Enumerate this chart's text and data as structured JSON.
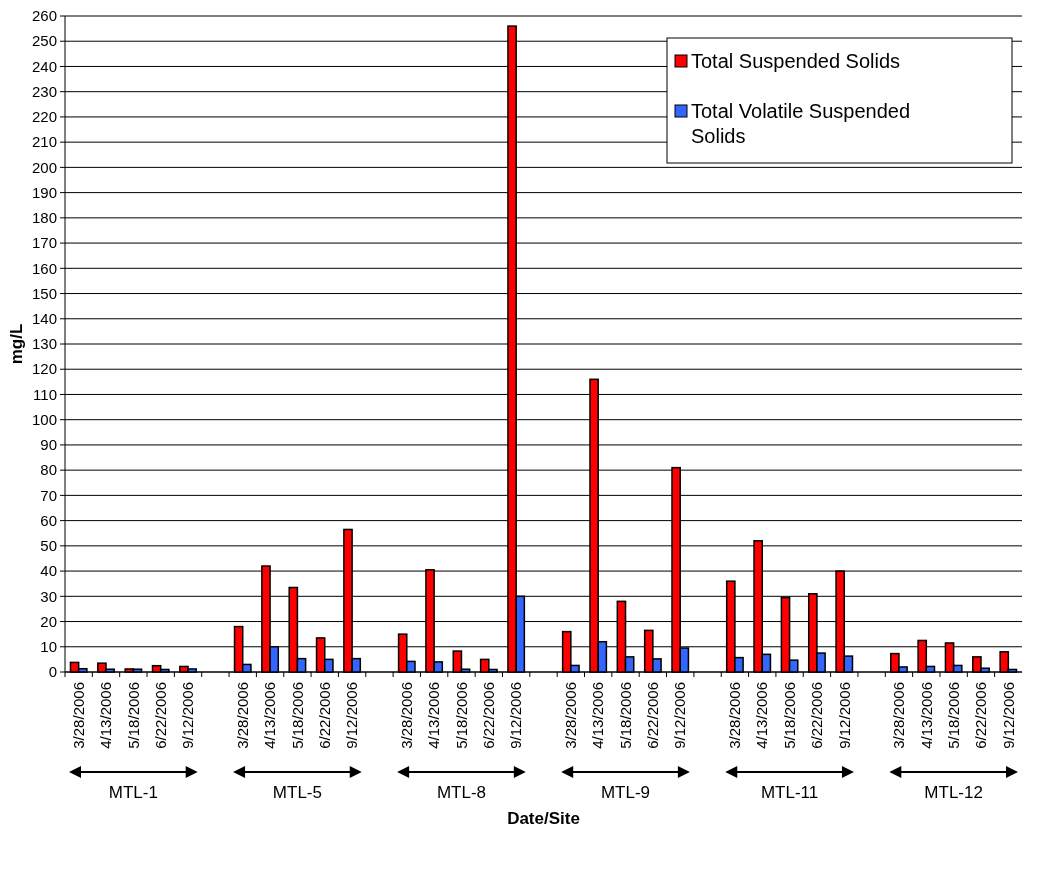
{
  "chart_data": {
    "type": "bar",
    "xlabel": "Date/Site",
    "ylabel": "mg/L",
    "categories": [
      "3/28/2006",
      "4/13/2006",
      "5/18/2006",
      "6/22/2006",
      "9/12/2006",
      null,
      "3/28/2006",
      "4/13/2006",
      "5/18/2006",
      "6/22/2006",
      "9/12/2006",
      null,
      "3/28/2006",
      "4/13/2006",
      "5/18/2006",
      "6/22/2006",
      "9/12/2006",
      null,
      "3/28/2006",
      "4/13/2006",
      "5/18/2006",
      "6/22/2006",
      "9/12/2006",
      null,
      "3/28/2006",
      "4/13/2006",
      "5/18/2006",
      "6/22/2006",
      "9/12/2006",
      null,
      "3/28/2006",
      "4/13/2006",
      "5/18/2006",
      "6/22/2006",
      "9/12/2006"
    ],
    "series": [
      {
        "name": "Total Suspended Solids",
        "color": "#ff0000",
        "values": [
          3.8,
          3.5,
          1.2,
          2.5,
          2.2,
          null,
          18,
          42,
          33.5,
          13.5,
          56.5,
          null,
          15,
          40.5,
          8.3,
          5,
          256,
          null,
          16,
          116,
          28,
          16.5,
          81,
          null,
          36,
          52,
          29.5,
          31,
          40,
          null,
          7.3,
          12.5,
          11.5,
          6,
          8
        ]
      },
      {
        "name": "Total Volatile Suspended Solids",
        "color": "#3366ff",
        "values": [
          1.3,
          1.1,
          1.1,
          1,
          1.2,
          null,
          3,
          10,
          5.3,
          5,
          5.3,
          null,
          4.2,
          4,
          1.1,
          1,
          30,
          null,
          2.6,
          12,
          6,
          5.2,
          9.5,
          null,
          5.7,
          7,
          4.7,
          7.5,
          6.3,
          null,
          2,
          2.2,
          2.6,
          1.5,
          1
        ]
      }
    ],
    "ylim": [
      0,
      260
    ],
    "yticks": [
      0,
      10,
      20,
      30,
      40,
      50,
      60,
      70,
      80,
      90,
      100,
      110,
      120,
      130,
      140,
      150,
      160,
      170,
      180,
      190,
      200,
      210,
      220,
      230,
      240,
      250,
      260
    ],
    "grid": "y",
    "legend": "top right",
    "annotations": [
      "MTL-1",
      "MTL-5",
      "MTL-8",
      "MTL-9",
      "MTL-11",
      "MTL-12"
    ]
  }
}
